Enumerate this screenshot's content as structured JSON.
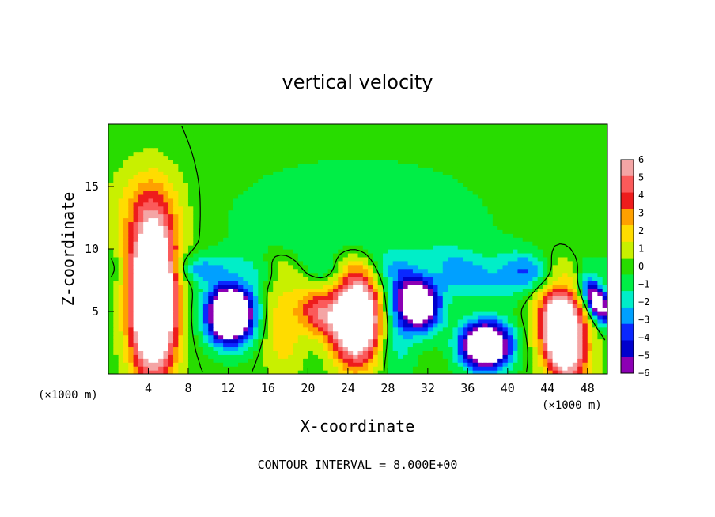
{
  "chart_data": {
    "type": "heatmap",
    "title": "vertical velocity",
    "xlabel": "X-coordinate",
    "ylabel": "Z-coordinate",
    "x_unit": "(×1000 m)",
    "xlim": [
      0,
      50
    ],
    "ylim": [
      0,
      20
    ],
    "x_ticks": [
      4,
      8,
      12,
      16,
      20,
      24,
      28,
      32,
      36,
      40,
      44,
      48
    ],
    "y_ticks": [
      5,
      10,
      15
    ],
    "colorbar": {
      "ticks": [
        6,
        5,
        4,
        3,
        2,
        1,
        0,
        -1,
        -2,
        -3,
        -4,
        -5,
        -6
      ],
      "colors": [
        "#f4a5a5",
        "#fb5a5a",
        "#ee1c1c",
        "#ffa000",
        "#ffdc00",
        "#c8f000",
        "#28dc00",
        "#00ee46",
        "#00eec8",
        "#00a0ff",
        "#0a28ff",
        "#0000cd",
        "#8c00b4"
      ]
    },
    "footnote": "CONTOUR INTERVAL = 8.000E+00",
    "features": [
      {
        "x": 4.5,
        "z": 6.0,
        "sx": 1.6,
        "sz": 4.2,
        "w": 14
      },
      {
        "x": 12.2,
        "z": 4.8,
        "sx": 1.6,
        "sz": 1.6,
        "rot": -0.9,
        "w": -13
      },
      {
        "x": 24.8,
        "z": 4.5,
        "sx": 1.6,
        "sz": 2.4,
        "w": 13
      },
      {
        "x": 21.0,
        "z": 5.0,
        "sx": 1.2,
        "sz": 1.5,
        "rot": -0.8,
        "w": 5
      },
      {
        "x": 31.0,
        "z": 5.5,
        "sx": 1.3,
        "sz": 1.5,
        "rot": -0.9,
        "w": -10
      },
      {
        "x": 37.8,
        "z": 2.3,
        "sx": 1.7,
        "sz": 1.3,
        "w": -12
      },
      {
        "x": 45.5,
        "z": 3.3,
        "sx": 1.5,
        "sz": 2.6,
        "rot": -0.2,
        "w": 12
      },
      {
        "x": 49.0,
        "z": 5.8,
        "sx": 0.7,
        "sz": 1.4,
        "rot": -0.6,
        "w": -9
      },
      {
        "x": 17.5,
        "z": 4.0,
        "sx": 1.4,
        "sz": 2.8,
        "w": 2.5
      },
      {
        "x": 29.0,
        "z": 3.0,
        "sx": 1.2,
        "sz": 2.5,
        "w": -2
      },
      {
        "x": 4.0,
        "z": 13.0,
        "sx": 2.5,
        "sz": 2.5,
        "w": 2.5
      },
      {
        "x": 33.0,
        "z": 8.0,
        "sx": 4.0,
        "sz": 1.5,
        "w": -2
      },
      {
        "x": 25.0,
        "z": 12.0,
        "sx": 10.0,
        "sz": 4.0,
        "w": -1.2
      },
      {
        "x": 10.0,
        "z": 8.5,
        "sx": 1.8,
        "sz": 0.8,
        "w": -3
      },
      {
        "x": 41.0,
        "z": 8.0,
        "sx": 3.0,
        "sz": 1.2,
        "w": -3
      }
    ]
  }
}
